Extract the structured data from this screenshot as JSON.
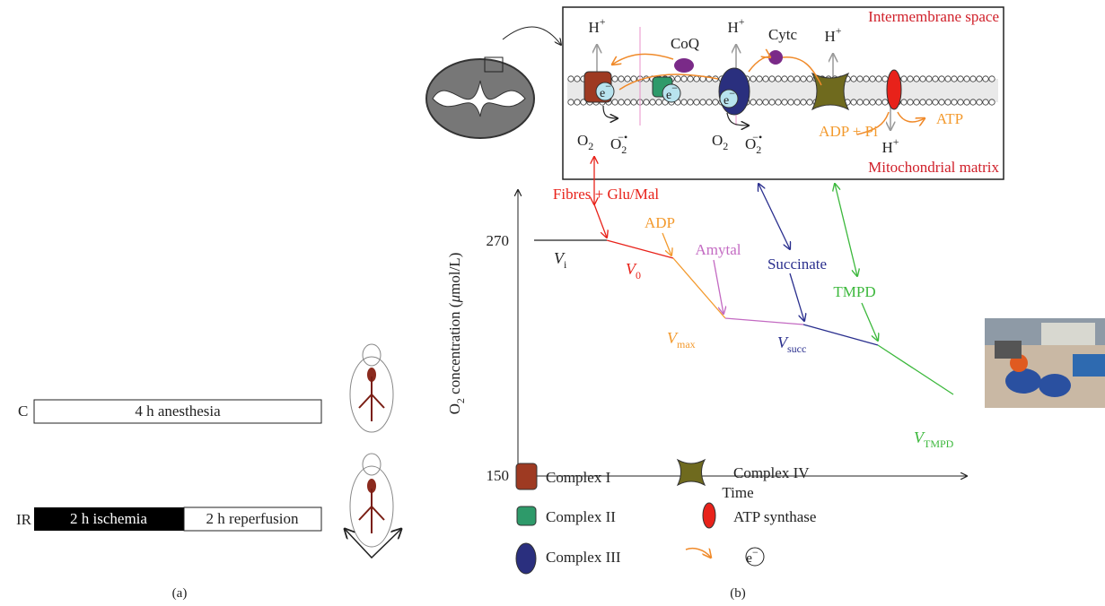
{
  "panel_a": {
    "label": "(a)",
    "rows": [
      {
        "group": "C",
        "phases": [
          "4 h anesthesia"
        ]
      },
      {
        "group": "IR",
        "phases": [
          "2 h ischemia",
          "2 h reperfusion"
        ]
      }
    ]
  },
  "panel_b": {
    "label": "(b)",
    "membrane": {
      "labels": [
        {
          "text": "H",
          "sup": "+"
        },
        {
          "text": "CoQ"
        },
        {
          "text": "H",
          "sup": "+"
        },
        {
          "text": "Cytc"
        },
        {
          "text": "H",
          "sup": "+"
        },
        {
          "text": "Intermembrane space"
        },
        {
          "text": "e",
          "sup": "−"
        },
        {
          "text": "e",
          "sup": "−"
        },
        {
          "text": "e",
          "sup": "−"
        },
        {
          "text": "O",
          "sub": "2"
        },
        {
          "text": "O",
          "sub": "2",
          "sup": "−•"
        },
        {
          "text": "O",
          "sub": "2"
        },
        {
          "text": "O",
          "sub": "2",
          "sup": "−•"
        },
        {
          "text": "ADP + Pi"
        },
        {
          "text": "ATP"
        },
        {
          "text": "H",
          "sup": "+"
        },
        {
          "text": "Mitochondrial matrix"
        }
      ]
    },
    "graph": {
      "y_label": {
        "text": "O",
        "sub": "2",
        "rest": " concentration (",
        "italic": "μ",
        "end": "mol/L)"
      },
      "x_label": "Time",
      "y_ticks": [
        "270",
        "150"
      ],
      "additions": [
        "Fibres + Glu/Mal",
        "ADP",
        "Amytal",
        "Succinate",
        "TMPD"
      ],
      "rates": [
        {
          "text": "V",
          "sub": "i"
        },
        {
          "text": "V",
          "sub": "0"
        },
        {
          "text": "V",
          "sub": "max"
        },
        {
          "text": "V",
          "sub": "succ"
        },
        {
          "text": "V",
          "sub": "TMPD"
        }
      ]
    },
    "legend": [
      "Complex I",
      "Complex II",
      "Complex III",
      "Complex IV",
      "ATP synthase",
      {
        "text": "e",
        "sup": "−"
      }
    ]
  }
}
